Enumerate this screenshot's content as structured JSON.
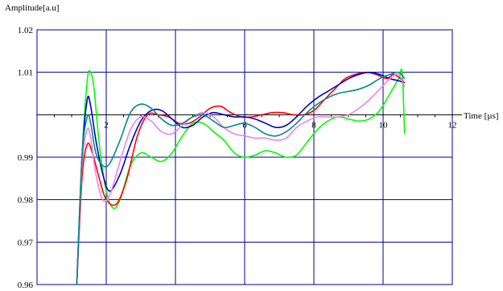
{
  "chart_data": {
    "type": "line",
    "title": "",
    "ylabel": "Amplitude[a.u]",
    "xlabel": "Time [µs]",
    "xlim": [
      0,
      12
    ],
    "ylim": [
      0.96,
      1.02
    ],
    "x_ticks": [
      2,
      4,
      6,
      8,
      10,
      12
    ],
    "x_tick_labels": [
      "2",
      "",
      "6",
      "8",
      "10",
      "12"
    ],
    "y_ticks": [
      0.96,
      0.97,
      0.98,
      0.99,
      1.01,
      1.02
    ],
    "y_tick_labels": [
      "0.96",
      "0.97",
      "0.98",
      "0.99",
      "1.01",
      "1.02"
    ],
    "x_axis_at": 1.0,
    "grid": true,
    "grid_color": "#00008b",
    "legend": "none",
    "series": [
      {
        "color": "#00ff00",
        "x": [
          1.15,
          1.3,
          1.45,
          1.55,
          1.65,
          1.8,
          2.0,
          2.2,
          2.4,
          2.7,
          3.0,
          3.3,
          3.6,
          3.9,
          4.2,
          4.5,
          4.8,
          5.1,
          5.4,
          5.7,
          6.0,
          6.3,
          6.6,
          6.9,
          7.2,
          7.5,
          7.8,
          8.1,
          8.4,
          8.7,
          9.0,
          9.3,
          9.6,
          9.9,
          10.2,
          10.45,
          10.55,
          10.62
        ],
        "y": [
          0.96,
          0.99,
          1.008,
          1.01,
          1.006,
          0.993,
          0.982,
          0.978,
          0.98,
          0.988,
          0.991,
          0.99,
          0.989,
          0.991,
          0.995,
          0.998,
          0.998,
          0.996,
          0.994,
          0.991,
          0.99,
          0.9905,
          0.9915,
          0.991,
          0.99,
          0.9905,
          0.9935,
          0.9965,
          0.9985,
          0.9995,
          0.999,
          0.9985,
          0.999,
          1.001,
          1.005,
          1.0085,
          1.01,
          0.9955
        ]
      },
      {
        "color": "#ff0000",
        "x": [
          1.15,
          1.3,
          1.45,
          1.6,
          1.8,
          2.0,
          2.3,
          2.6,
          2.9,
          3.2,
          3.5,
          3.8,
          4.1,
          4.4,
          4.7,
          5.0,
          5.3,
          5.6,
          5.9,
          6.2,
          6.5,
          6.8,
          7.1,
          7.4,
          7.7,
          8.0,
          8.3,
          8.6,
          8.9,
          9.2,
          9.5,
          9.8,
          10.1,
          10.3,
          10.5,
          10.62
        ],
        "y": [
          0.96,
          0.985,
          0.993,
          0.991,
          0.985,
          0.98,
          0.979,
          0.985,
          0.995,
          1.0,
          1.0,
          0.9995,
          0.998,
          0.998,
          0.9995,
          1.0015,
          1.002,
          1.0005,
          0.9995,
          0.9995,
          1.0,
          1.0005,
          1.0005,
          1.0,
          1.0,
          1.001,
          1.0035,
          1.006,
          1.0085,
          1.0095,
          1.01,
          1.0095,
          1.0085,
          1.0095,
          1.0085,
          1.0075
        ]
      },
      {
        "color": "#0000cd",
        "x": [
          1.15,
          1.3,
          1.45,
          1.55,
          1.7,
          1.9,
          2.1,
          2.4,
          2.7,
          3.0,
          3.3,
          3.6,
          3.9,
          4.2,
          4.5,
          4.8,
          5.1,
          5.4,
          5.7,
          6.0,
          6.3,
          6.6,
          6.9,
          7.2,
          7.5,
          7.8,
          8.1,
          8.4,
          8.7,
          9.0,
          9.3,
          9.6,
          9.9,
          10.2,
          10.45,
          10.62
        ],
        "y": [
          0.96,
          0.99,
          1.0035,
          1.002,
          0.994,
          0.986,
          0.982,
          0.986,
          0.993,
          0.9985,
          1.001,
          1.001,
          0.999,
          0.997,
          0.9975,
          0.9995,
          1.0005,
          1.0,
          0.9995,
          0.9995,
          0.999,
          0.998,
          0.997,
          0.9975,
          0.9995,
          1.002,
          1.004,
          1.0055,
          1.007,
          1.0085,
          1.0095,
          1.01,
          1.0095,
          1.0085,
          1.008,
          1.0075
        ]
      },
      {
        "color": "#ee82ee",
        "x": [
          1.15,
          1.3,
          1.45,
          1.55,
          1.7,
          1.9,
          2.1,
          2.4,
          2.7,
          3.0,
          3.3,
          3.6,
          3.9,
          4.2,
          4.5,
          4.8,
          5.1,
          5.4,
          5.7,
          6.0,
          6.3,
          6.6,
          6.9,
          7.2,
          7.5,
          7.8,
          8.1,
          8.4,
          8.7,
          9.0,
          9.3,
          9.6,
          9.9,
          10.2,
          10.45,
          10.62
        ],
        "y": [
          0.96,
          0.988,
          0.9965,
          0.9945,
          0.986,
          0.98,
          0.981,
          0.989,
          0.9965,
          0.9995,
          0.9985,
          0.996,
          0.9955,
          0.9975,
          0.9995,
          1.0005,
          0.9995,
          0.997,
          0.9955,
          0.995,
          0.9945,
          0.9945,
          0.994,
          0.9945,
          0.997,
          0.9985,
          0.9995,
          0.9995,
          0.9995,
          1.0,
          1.0015,
          1.0035,
          1.006,
          1.0085,
          1.0095,
          1.0065
        ]
      },
      {
        "color": "#008b8b",
        "x": [
          1.15,
          1.3,
          1.45,
          1.55,
          1.7,
          1.9,
          2.1,
          2.4,
          2.7,
          3.0,
          3.3,
          3.6,
          3.9,
          4.2,
          4.5,
          4.8,
          5.1,
          5.4,
          5.7,
          6.0,
          6.3,
          6.6,
          6.9,
          7.2,
          7.5,
          7.8,
          8.1,
          8.4,
          8.7,
          9.0,
          9.3,
          9.6,
          9.9,
          10.2,
          10.45,
          10.62
        ],
        "y": [
          0.96,
          0.99,
          0.9995,
          0.998,
          0.991,
          0.988,
          0.9885,
          0.994,
          1.0005,
          1.0025,
          1.0015,
          0.999,
          0.9975,
          0.998,
          0.9995,
          1.0,
          0.9985,
          0.997,
          0.9975,
          0.998,
          0.997,
          0.9955,
          0.995,
          0.996,
          0.998,
          1.0005,
          1.0025,
          1.004,
          1.005,
          1.0055,
          1.006,
          1.007,
          1.0085,
          1.0095,
          1.01,
          1.0085
        ]
      }
    ]
  }
}
